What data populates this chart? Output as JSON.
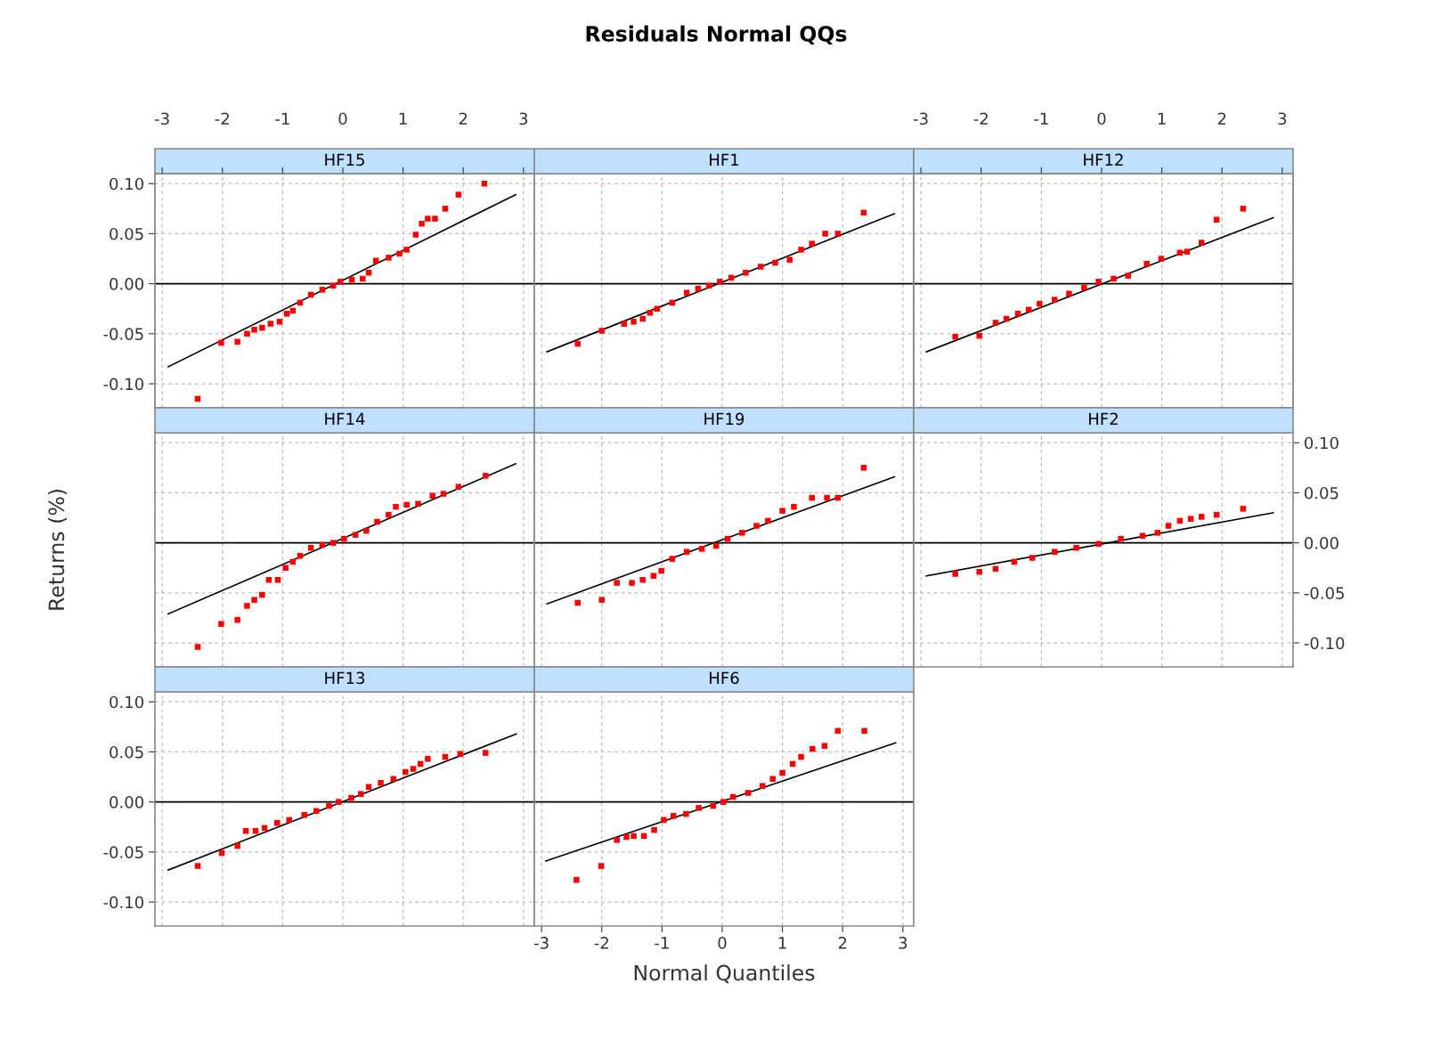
{
  "chart_data": [
    {
      "type": "scatter",
      "title": "HF15",
      "annotations": [
        "Residuals Normal QQs"
      ],
      "xlim": [
        -3.12,
        3.18
      ],
      "ylim": [
        -0.124,
        0.11
      ],
      "xticks": [
        -3,
        -2,
        -1,
        0,
        1,
        2,
        3
      ],
      "yticks": [
        {
          "value": -0.1,
          "label": "-0.10"
        },
        {
          "value": -0.05,
          "label": "-0.05"
        },
        {
          "value": 0,
          "label": "0.00"
        },
        {
          "value": 0.05,
          "label": "0.05"
        },
        {
          "value": 0.1,
          "label": "0.10"
        }
      ],
      "x2lim": [
        -3.12,
        3.18
      ],
      "x2ticks": [
        -3,
        -2,
        -1,
        0,
        1,
        2,
        3
      ],
      "tick_labels": "y",
      "grid": true,
      "ref_lines": [
        {
          "axis": "y",
          "value": 0,
          "color": "#000000"
        }
      ],
      "series": [
        {
          "color": "#ff0000",
          "marker": "square",
          "x": [
            -2.41,
            -2.02,
            -1.75,
            -1.59,
            -1.47,
            -1.34,
            -1.2,
            -1.05,
            -0.93,
            -0.83,
            -0.71,
            -0.53,
            -0.34,
            -0.16,
            -0.04,
            0.15,
            0.33,
            0.43,
            0.55,
            0.76,
            0.94,
            1.06,
            1.21,
            1.31,
            1.41,
            1.53,
            1.7,
            1.92,
            2.35
          ],
          "values": [
            -0.115,
            -0.059,
            -0.058,
            -0.05,
            -0.046,
            -0.044,
            -0.04,
            -0.038,
            -0.03,
            -0.027,
            -0.019,
            -0.011,
            -0.006,
            -0.002,
            0.002,
            0.004,
            0.005,
            0.011,
            0.023,
            0.026,
            0.03,
            0.034,
            0.049,
            0.06,
            0.065,
            0.065,
            0.075,
            0.089,
            0.1
          ]
        },
        {
          "type": "line",
          "color": "#000000",
          "x": [
            -2.9,
            2.87
          ],
          "values": [
            -0.083,
            0.089
          ]
        }
      ]
    },
    {
      "type": "scatter",
      "title": "HF1",
      "xlim": [
        -3.12,
        3.18
      ],
      "ylim": [
        -0.124,
        0.11
      ],
      "xticks": [
        -3,
        -2,
        -1,
        0,
        1,
        2,
        3
      ],
      "yticks": [
        -0.1,
        -0.05,
        0,
        0.05,
        0.1
      ],
      "tick_labels": false,
      "grid": true,
      "ref_lines": [
        {
          "axis": "y",
          "value": 0,
          "color": "#000000"
        }
      ],
      "series": [
        {
          "color": "#ff0000",
          "marker": "square",
          "x": [
            -2.4,
            -2.0,
            -1.63,
            -1.47,
            -1.32,
            -1.2,
            -1.08,
            -0.83,
            -0.59,
            -0.4,
            -0.22,
            -0.04,
            0.15,
            0.39,
            0.64,
            0.88,
            1.12,
            1.31,
            1.49,
            1.71,
            1.92,
            2.35
          ],
          "values": [
            -0.06,
            -0.047,
            -0.04,
            -0.038,
            -0.035,
            -0.029,
            -0.025,
            -0.019,
            -0.009,
            -0.005,
            -0.002,
            0.002,
            0.006,
            0.011,
            0.017,
            0.021,
            0.024,
            0.034,
            0.04,
            0.05,
            0.05,
            0.071
          ]
        },
        {
          "type": "line",
          "color": "#000000",
          "x": [
            -2.91,
            2.86
          ],
          "values": [
            -0.068,
            0.07
          ]
        }
      ]
    },
    {
      "type": "scatter",
      "title": "HF12",
      "xlim": [
        -3.12,
        3.18
      ],
      "ylim": [
        -0.124,
        0.11
      ],
      "xticks": [
        -3,
        -2,
        -1,
        0,
        1,
        2,
        3
      ],
      "yticks": [
        -0.1,
        -0.05,
        0,
        0.05,
        0.1
      ],
      "x2lim": [
        -3.12,
        3.18
      ],
      "x2ticks": [
        -3,
        -2,
        -1,
        0,
        1,
        2,
        3
      ],
      "tick_labels": false,
      "grid": true,
      "ref_lines": [
        {
          "axis": "y",
          "value": 0,
          "color": "#000000"
        }
      ],
      "series": [
        {
          "color": "#ff0000",
          "marker": "square",
          "x": [
            -2.43,
            -2.03,
            -1.76,
            -1.58,
            -1.39,
            -1.21,
            -1.03,
            -0.78,
            -0.54,
            -0.29,
            -0.05,
            0.2,
            0.44,
            0.75,
            0.99,
            1.3,
            1.42,
            1.66,
            1.91,
            2.35
          ],
          "values": [
            -0.053,
            -0.052,
            -0.039,
            -0.035,
            -0.03,
            -0.026,
            -0.02,
            -0.016,
            -0.01,
            -0.004,
            0.002,
            0.005,
            0.008,
            0.02,
            0.025,
            0.031,
            0.032,
            0.041,
            0.064,
            0.075
          ]
        },
        {
          "type": "line",
          "color": "#000000",
          "x": [
            -2.91,
            2.85
          ],
          "values": [
            -0.068,
            0.066
          ]
        }
      ]
    },
    {
      "type": "scatter",
      "title": "HF14",
      "ylabel": "Returns (%)",
      "xlim": [
        -3.12,
        3.18
      ],
      "ylim": [
        -0.124,
        0.11
      ],
      "xticks": [
        -3,
        -2,
        -1,
        0,
        1,
        2,
        3
      ],
      "yticks": [
        -0.1,
        -0.05,
        0,
        0.05,
        0.1
      ],
      "tick_labels": false,
      "grid": true,
      "ref_lines": [
        {
          "axis": "y",
          "value": 0,
          "color": "#000000"
        }
      ],
      "series": [
        {
          "color": "#ff0000",
          "marker": "square",
          "x": [
            -2.41,
            -2.02,
            -1.75,
            -1.59,
            -1.47,
            -1.34,
            -1.23,
            -1.08,
            -0.95,
            -0.83,
            -0.71,
            -0.53,
            -0.34,
            -0.16,
            0.02,
            0.21,
            0.39,
            0.57,
            0.76,
            0.88,
            1.06,
            1.25,
            1.49,
            1.67,
            1.92,
            2.37
          ],
          "values": [
            -0.104,
            -0.081,
            -0.077,
            -0.063,
            -0.057,
            -0.052,
            -0.037,
            -0.037,
            -0.025,
            -0.019,
            -0.013,
            -0.005,
            -0.002,
            0.0,
            0.004,
            0.008,
            0.012,
            0.021,
            0.028,
            0.036,
            0.038,
            0.039,
            0.047,
            0.049,
            0.056,
            0.067
          ]
        },
        {
          "type": "line",
          "color": "#000000",
          "x": [
            -2.9,
            2.87
          ],
          "values": [
            -0.071,
            0.079
          ]
        }
      ]
    },
    {
      "type": "scatter",
      "title": "HF19",
      "xlim": [
        -3.12,
        3.18
      ],
      "ylim": [
        -0.124,
        0.11
      ],
      "xticks": [
        -3,
        -2,
        -1,
        0,
        1,
        2,
        3
      ],
      "yticks": [
        -0.1,
        -0.05,
        0,
        0.05,
        0.1
      ],
      "tick_labels": false,
      "grid": true,
      "ref_lines": [
        {
          "axis": "y",
          "value": 0,
          "color": "#000000"
        }
      ],
      "series": [
        {
          "color": "#ff0000",
          "marker": "square",
          "x": [
            -2.4,
            -2.0,
            -1.75,
            -1.5,
            -1.32,
            -1.14,
            -1.01,
            -0.83,
            -0.59,
            -0.34,
            -0.1,
            0.09,
            0.33,
            0.57,
            0.76,
            1.0,
            1.19,
            1.49,
            1.74,
            1.92,
            2.35
          ],
          "values": [
            -0.06,
            -0.057,
            -0.04,
            -0.04,
            -0.037,
            -0.033,
            -0.028,
            -0.016,
            -0.009,
            -0.006,
            -0.003,
            0.004,
            0.01,
            0.017,
            0.022,
            0.032,
            0.036,
            0.045,
            0.045,
            0.045,
            0.075
          ]
        },
        {
          "type": "line",
          "color": "#000000",
          "x": [
            -2.91,
            2.86
          ],
          "values": [
            -0.061,
            0.066
          ]
        }
      ]
    },
    {
      "type": "scatter",
      "title": "HF2",
      "xlim": [
        -3.12,
        3.18
      ],
      "xticks": [
        -3,
        -2,
        -1,
        0,
        1,
        2,
        3
      ],
      "y2lim": [
        -0.124,
        0.11
      ],
      "y2ticks": [
        {
          "value": -0.1,
          "label": "-0.10"
        },
        {
          "value": -0.05,
          "label": "-0.05"
        },
        {
          "value": 0,
          "label": "0.00"
        },
        {
          "value": 0.05,
          "label": "0.05"
        },
        {
          "value": 0.1,
          "label": "0.10"
        }
      ],
      "tick_labels": "y",
      "grid": true,
      "ref_lines": [
        {
          "axis": "y2",
          "value": 0,
          "color": "#000000"
        }
      ],
      "series": [
        {
          "axis": "y2",
          "color": "#ff0000",
          "marker": "square",
          "x": [
            -2.43,
            -2.03,
            -1.76,
            -1.45,
            -1.15,
            -0.78,
            -0.42,
            -0.05,
            0.32,
            0.68,
            0.93,
            1.11,
            1.3,
            1.48,
            1.66,
            1.91,
            2.35
          ],
          "values": [
            -0.031,
            -0.029,
            -0.026,
            -0.019,
            -0.015,
            -0.009,
            -0.005,
            -0.001,
            0.004,
            0.007,
            0.01,
            0.017,
            0.022,
            0.024,
            0.026,
            0.028,
            0.034
          ]
        },
        {
          "type": "line",
          "axis": "y2",
          "color": "#000000",
          "x": [
            -2.91,
            2.85
          ],
          "values": [
            -0.033,
            0.03
          ]
        }
      ]
    },
    {
      "type": "scatter",
      "title": "HF13",
      "xlim": [
        -3.12,
        3.18
      ],
      "ylim": [
        -0.124,
        0.11
      ],
      "xticks": [
        -3,
        -2,
        -1,
        0,
        1,
        2,
        3
      ],
      "yticks": [
        {
          "value": -0.1,
          "label": "-0.10"
        },
        {
          "value": -0.05,
          "label": "-0.05"
        },
        {
          "value": 0,
          "label": "0.00"
        },
        {
          "value": 0.05,
          "label": "0.05"
        },
        {
          "value": 0.1,
          "label": "0.10"
        }
      ],
      "tick_labels": "y",
      "grid": true,
      "ref_lines": [
        {
          "axis": "y",
          "value": 0,
          "color": "#000000"
        }
      ],
      "series": [
        {
          "color": "#ff0000",
          "marker": "square",
          "x": [
            -2.41,
            -2.01,
            -1.75,
            -1.61,
            -1.45,
            -1.3,
            -1.09,
            -0.89,
            -0.64,
            -0.44,
            -0.23,
            -0.07,
            0.14,
            0.3,
            0.43,
            0.63,
            0.84,
            1.04,
            1.17,
            1.29,
            1.41,
            1.7,
            1.95,
            2.37
          ],
          "values": [
            -0.064,
            -0.051,
            -0.044,
            -0.029,
            -0.029,
            -0.026,
            -0.021,
            -0.018,
            -0.013,
            -0.009,
            -0.004,
            0.0,
            0.004,
            0.008,
            0.015,
            0.019,
            0.023,
            0.03,
            0.033,
            0.038,
            0.043,
            0.045,
            0.048,
            0.049
          ]
        },
        {
          "type": "line",
          "color": "#000000",
          "x": [
            -2.9,
            2.88
          ],
          "values": [
            -0.068,
            0.068
          ]
        }
      ]
    },
    {
      "type": "scatter",
      "title": "HF6",
      "xlabel": "Normal Quantiles",
      "xlim": [
        -3.12,
        3.18
      ],
      "ylim": [
        -0.124,
        0.11
      ],
      "xticks": [
        -3,
        -2,
        -1,
        0,
        1,
        2,
        3
      ],
      "yticks": [
        -0.1,
        -0.05,
        0,
        0.05,
        0.1
      ],
      "tick_labels": "x",
      "grid": true,
      "ref_lines": [
        {
          "axis": "y",
          "value": 0,
          "color": "#000000"
        }
      ],
      "series": [
        {
          "color": "#ff0000",
          "marker": "square",
          "x": [
            -2.42,
            -2.01,
            -1.75,
            -1.59,
            -1.47,
            -1.3,
            -1.13,
            -0.97,
            -0.81,
            -0.6,
            -0.39,
            -0.15,
            0.02,
            0.18,
            0.43,
            0.67,
            0.84,
            1.0,
            1.17,
            1.31,
            1.5,
            1.7,
            1.92,
            2.36
          ],
          "values": [
            -0.078,
            -0.064,
            -0.038,
            -0.035,
            -0.034,
            -0.034,
            -0.028,
            -0.018,
            -0.014,
            -0.012,
            -0.006,
            -0.004,
            0.0,
            0.005,
            0.009,
            0.016,
            0.023,
            0.029,
            0.038,
            0.045,
            0.053,
            0.056,
            0.071,
            0.071
          ]
        },
        {
          "type": "line",
          "color": "#000000",
          "x": [
            -2.93,
            2.88
          ],
          "values": [
            -0.059,
            0.059
          ]
        }
      ]
    }
  ]
}
